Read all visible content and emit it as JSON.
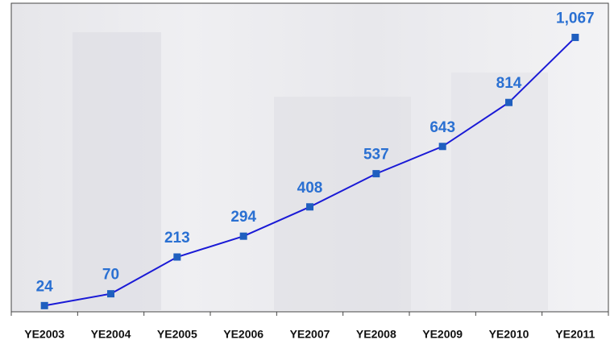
{
  "chart_data": {
    "type": "line",
    "categories": [
      "YE2003",
      "YE2004",
      "YE2005",
      "YE2006",
      "YE2007",
      "YE2008",
      "YE2009",
      "YE2010",
      "YE2011"
    ],
    "values": [
      24,
      70,
      213,
      294,
      408,
      537,
      643,
      814,
      1067
    ],
    "value_labels": [
      "24",
      "70",
      "213",
      "294",
      "408",
      "537",
      "643",
      "814",
      "1,067"
    ],
    "color": "#1a1ad6",
    "marker_color": "#1f5fbf",
    "ylim": [
      0,
      1200
    ],
    "grid": false
  }
}
